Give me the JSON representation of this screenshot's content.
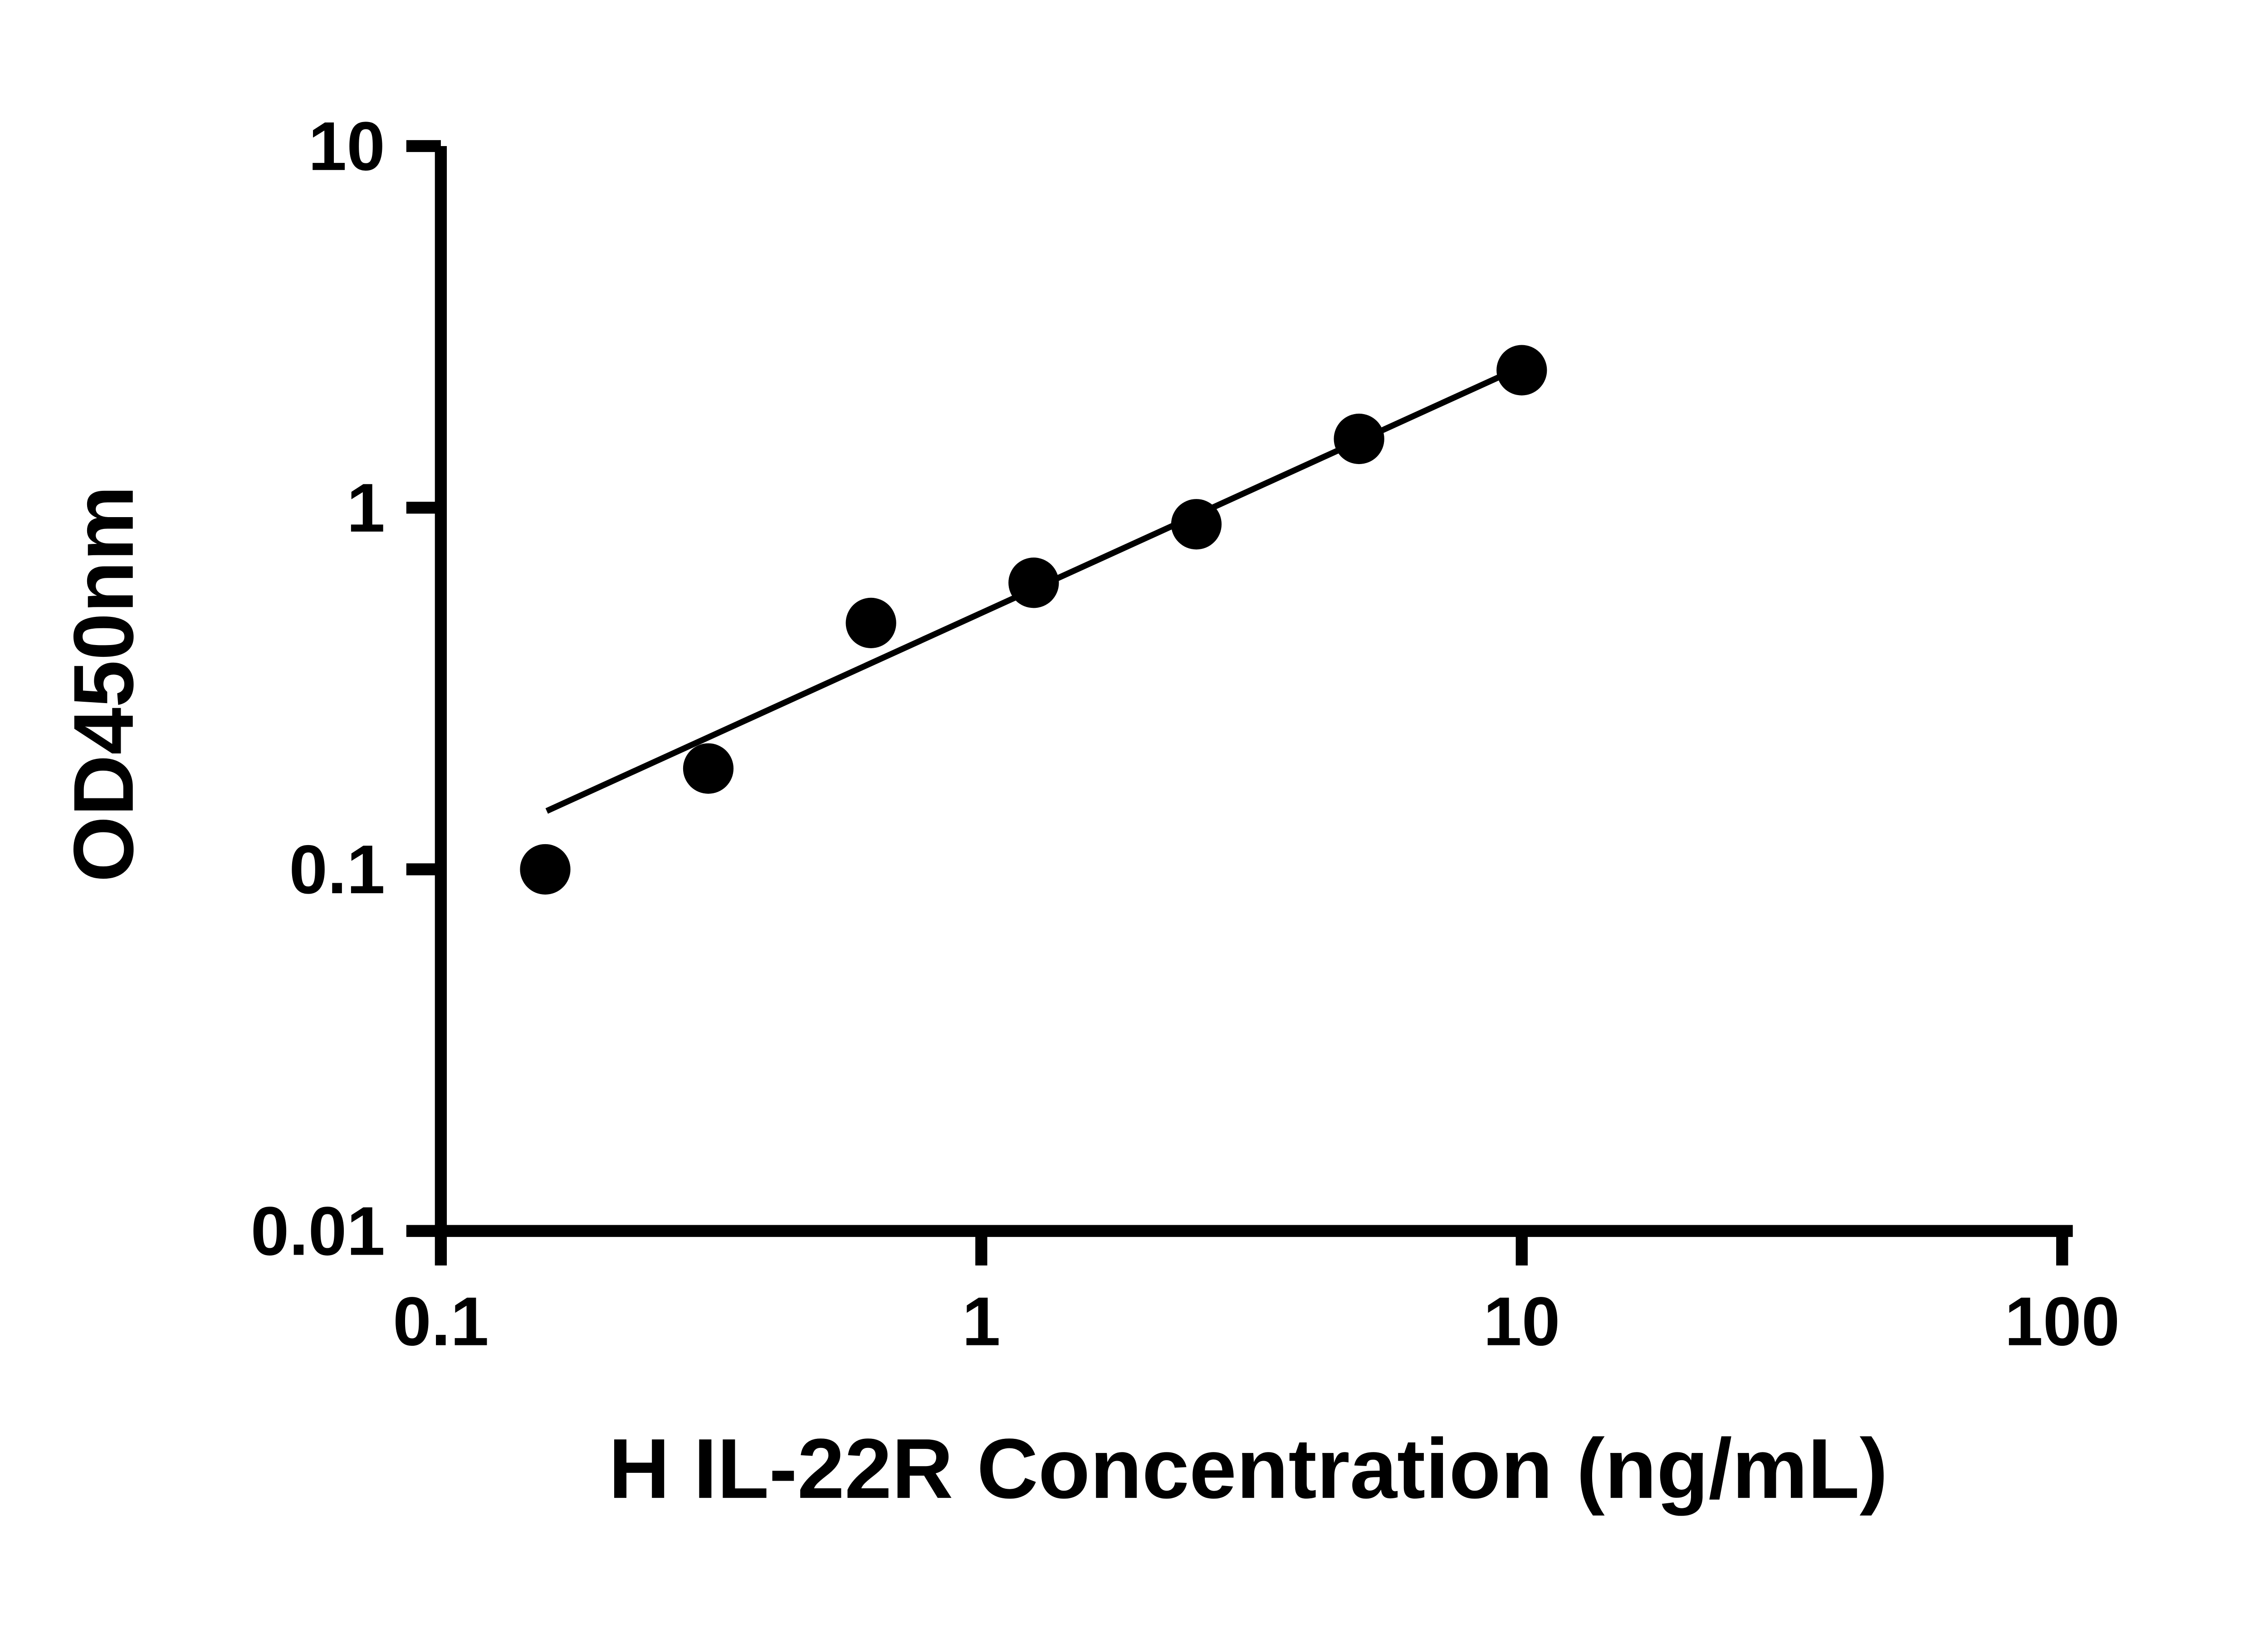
{
  "chart_data": {
    "type": "scatter",
    "title": "",
    "xlabel": "H IL-22R Concentration (ng/mL)",
    "ylabel": "OD450nm",
    "x_scale": "log",
    "y_scale": "log",
    "xlim": [
      0.1,
      100
    ],
    "ylim": [
      0.01,
      10
    ],
    "x_ticks": [
      0.1,
      1,
      10,
      100
    ],
    "x_tick_labels": [
      "0.1",
      "1",
      "10",
      "100"
    ],
    "y_ticks": [
      0.01,
      0.1,
      1,
      10
    ],
    "y_tick_labels": [
      "0.01",
      "0.1",
      "1",
      "10"
    ],
    "grid": false,
    "legend": "none",
    "series": [
      {
        "name": "standard-curve-points",
        "type": "scatter",
        "marker": "filled-circle",
        "marker_color": "#000000",
        "points": [
          {
            "x": 0.156,
            "y": 0.1
          },
          {
            "x": 0.3125,
            "y": 0.19
          },
          {
            "x": 0.625,
            "y": 0.48
          },
          {
            "x": 1.25,
            "y": 0.62
          },
          {
            "x": 2.5,
            "y": 0.9
          },
          {
            "x": 5,
            "y": 1.55
          },
          {
            "x": 10,
            "y": 2.4
          }
        ]
      }
    ],
    "trend_line": {
      "type": "straight-line-log-log",
      "color": "#000000",
      "start": {
        "x": 0.157,
        "y": 0.145
      },
      "end": {
        "x": 10.4,
        "y": 2.52
      }
    }
  },
  "colors": {
    "background": "#ffffff",
    "axis": "#000000",
    "marker": "#000000",
    "trend_line": "#000000"
  }
}
